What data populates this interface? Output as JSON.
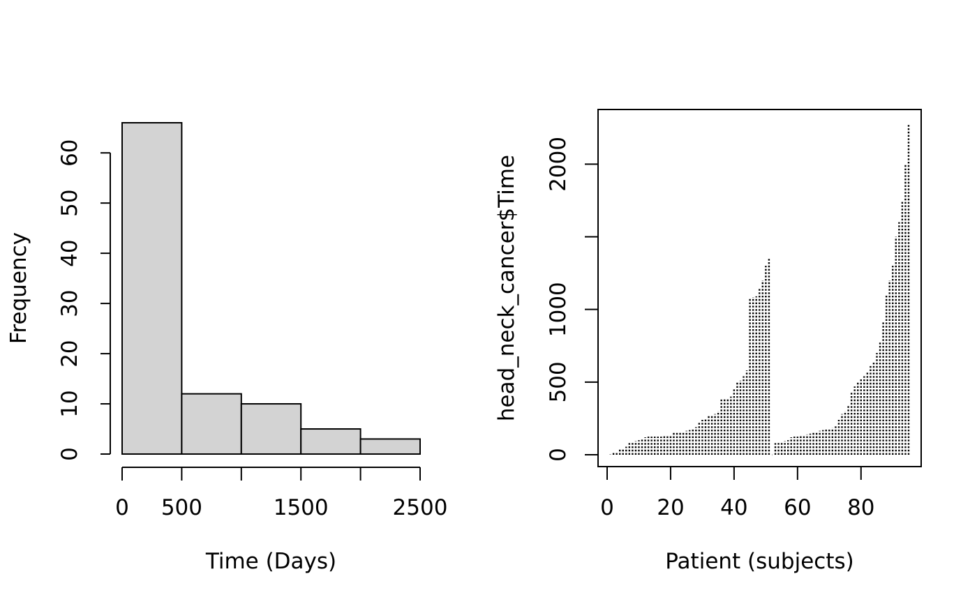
{
  "chart_data": [
    {
      "type": "bar",
      "title": "",
      "xlabel": "Time (Days)",
      "ylabel": "Frequency",
      "bins": [
        {
          "from": 0,
          "to": 500,
          "count": 66
        },
        {
          "from": 500,
          "to": 1000,
          "count": 12
        },
        {
          "from": 1000,
          "to": 1500,
          "count": 10
        },
        {
          "from": 1500,
          "to": 2000,
          "count": 5
        },
        {
          "from": 2000,
          "to": 2500,
          "count": 3
        }
      ],
      "xlim": [
        0,
        2500
      ],
      "ylim": [
        0,
        66
      ],
      "x_ticks": [
        0,
        500,
        1000,
        1500,
        2000,
        2500
      ],
      "x_tick_labels": [
        "0",
        "500",
        "",
        "1500",
        "",
        "2500"
      ],
      "y_ticks": [
        0,
        10,
        20,
        30,
        40,
        50,
        60
      ],
      "y_tick_labels": [
        "0",
        "10",
        "20",
        "30",
        "40",
        "50",
        "60"
      ],
      "fill_color": "#d3d3d3",
      "grid": false
    },
    {
      "type": "scatter",
      "title": "",
      "xlabel": "Patient (subjects)",
      "ylabel": "head_neck_cancer$Time",
      "mark": "vertical dotted lines from 0 to value",
      "x": [
        1,
        2,
        3,
        4,
        5,
        6,
        7,
        8,
        9,
        10,
        11,
        12,
        13,
        14,
        15,
        16,
        17,
        18,
        19,
        20,
        21,
        22,
        23,
        24,
        25,
        26,
        27,
        28,
        29,
        30,
        31,
        32,
        33,
        34,
        35,
        36,
        37,
        38,
        39,
        40,
        41,
        42,
        43,
        44,
        45,
        46,
        47,
        48,
        49,
        50,
        51,
        52,
        53,
        54,
        55,
        56,
        57,
        58,
        59,
        60,
        61,
        62,
        63,
        64,
        65,
        66,
        67,
        68,
        69,
        70,
        71,
        72,
        73,
        74,
        75,
        76,
        77,
        78,
        79,
        80,
        81,
        82,
        83,
        84,
        85,
        86,
        87,
        88,
        89,
        90,
        91,
        92,
        93,
        94,
        95
      ],
      "y": [
        2,
        12,
        20,
        40,
        45,
        55,
        80,
        90,
        95,
        100,
        105,
        120,
        125,
        125,
        125,
        125,
        125,
        128,
        130,
        132,
        150,
        155,
        160,
        160,
        165,
        170,
        175,
        190,
        220,
        240,
        250,
        265,
        275,
        280,
        300,
        380,
        385,
        390,
        400,
        450,
        500,
        510,
        540,
        580,
        1080,
        1085,
        1090,
        1150,
        1200,
        1300,
        1350,
        0,
        80,
        85,
        90,
        95,
        100,
        120,
        125,
        125,
        128,
        130,
        140,
        145,
        150,
        155,
        165,
        170,
        175,
        180,
        185,
        195,
        240,
        280,
        300,
        340,
        430,
        470,
        500,
        520,
        540,
        570,
        610,
        640,
        700,
        780,
        920,
        1100,
        1200,
        1300,
        1500,
        1600,
        1750,
        2000,
        2280
      ],
      "xlim": [
        0,
        95
      ],
      "ylim": [
        0,
        2280
      ],
      "x_ticks": [
        0,
        20,
        40,
        60,
        80
      ],
      "x_tick_labels": [
        "0",
        "20",
        "40",
        "60",
        "80"
      ],
      "y_ticks": [
        0,
        500,
        1000,
        1500,
        2000
      ],
      "y_tick_labels": [
        "0",
        "500",
        "1000",
        "",
        "2000"
      ],
      "grid": false
    }
  ]
}
